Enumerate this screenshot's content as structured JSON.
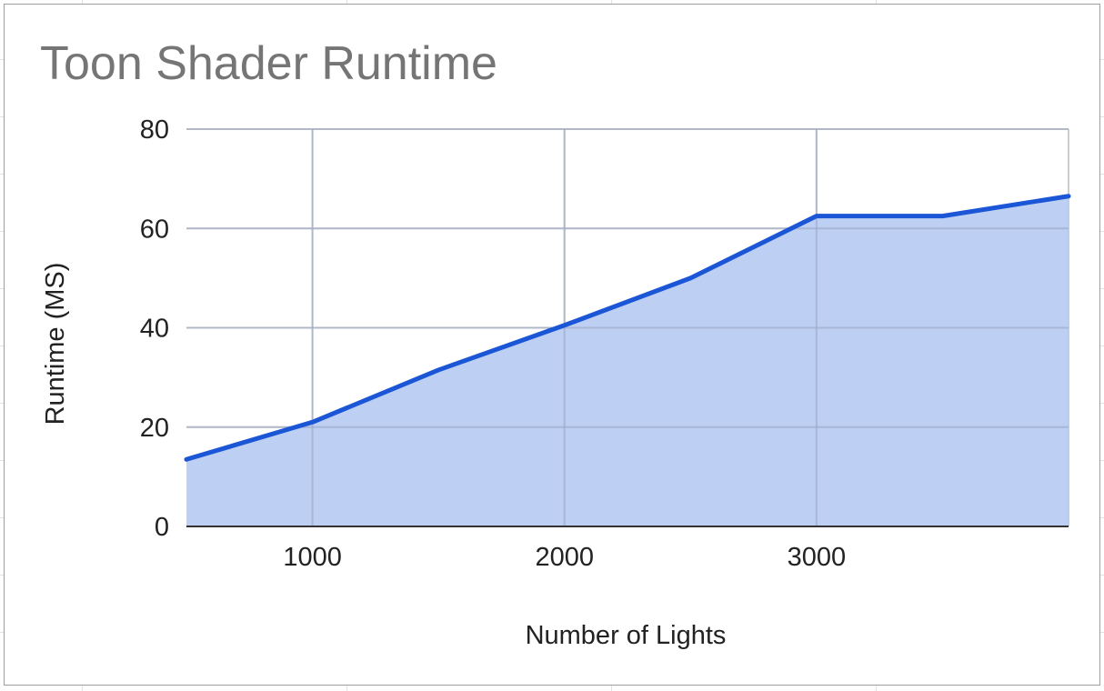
{
  "chart_data": {
    "type": "area",
    "title": "Toon Shader Runtime",
    "xlabel": "Number of Lights",
    "ylabel": "Runtime (MS)",
    "x": [
      500,
      1000,
      1500,
      2000,
      2500,
      3000,
      3500,
      4000
    ],
    "series": [
      {
        "values": [
          13.5,
          21,
          31.5,
          40.5,
          50,
          62.5,
          62.5,
          66.5
        ]
      }
    ],
    "xlim": [
      500,
      4000
    ],
    "ylim": [
      0,
      80
    ],
    "xticks": [
      "1000",
      "2000",
      "3000"
    ],
    "yticks": [
      "0",
      "20",
      "40",
      "60",
      "80"
    ],
    "grid": true,
    "legend": "none",
    "colors": {
      "line": "#1a56d6",
      "fill": "#b7cbf1",
      "grid": "#cccccc",
      "baseline": "#333333"
    }
  }
}
